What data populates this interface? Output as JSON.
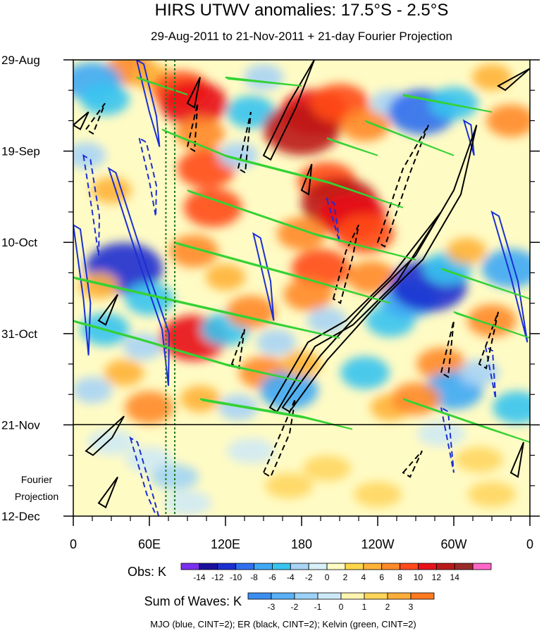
{
  "colors": {
    "mjo": "#1a2fd6",
    "er": "#000000",
    "kelvin": "#34d234",
    "meridian_marker": "#1f7a1f",
    "obs_scale": [
      "#7b2ff0",
      "#1c0f9e",
      "#1c2fd0",
      "#2f6ff0",
      "#3fa8f5",
      "#37c4f0",
      "#a9d4f5",
      "#d8f0f7",
      "#fffbc4",
      "#ffd74a",
      "#ffb238",
      "#ff8a2a",
      "#ff4a1a",
      "#e8111a",
      "#bb1a1a",
      "#9c2a2a",
      "#ff66c8"
    ],
    "wave_scale": [
      "#3b8ef0",
      "#5aaff5",
      "#9cd2f7",
      "#cde9f7",
      "#fff4b0",
      "#ffd45a",
      "#ffae3a",
      "#ff7a1f"
    ]
  },
  "chart_data": {
    "type": "heatmap",
    "title": "HIRS UTWV anomalies: 17.5°S - 2.5°S",
    "subtitle": "29-Aug-2011 to 21-Nov-2011 + 21-day Fourier Projection",
    "y_axis": {
      "dates": [
        "29-Aug",
        "19-Sep",
        "10-Oct",
        "31-Oct",
        "21-Nov",
        "12-Dec"
      ],
      "day_offsets": [
        0,
        21,
        42,
        63,
        84,
        105
      ],
      "range_days": [
        0,
        105
      ],
      "observation_end_label": "21-Nov",
      "projection_label": "Fourier Projection"
    },
    "x_axis": {
      "ticks": [
        "0",
        "60E",
        "120E",
        "180",
        "120W",
        "60W",
        "0"
      ],
      "longitudes_east": [
        0,
        60,
        120,
        180,
        240,
        300,
        360
      ],
      "range": [
        0,
        360
      ]
    },
    "marker_longitudes_east": [
      73,
      80
    ],
    "obs_colorbar": {
      "label": "Obs: K",
      "levels": [
        -14,
        -12,
        -10,
        -8,
        -6,
        -4,
        -2,
        0,
        2,
        4,
        6,
        8,
        10,
        12,
        14
      ],
      "level_labels": [
        "-14",
        "-12",
        "-10",
        "-8",
        "-6",
        "-4",
        "-2",
        "0",
        "2",
        "4",
        "6",
        "8",
        "10",
        "12",
        "14"
      ]
    },
    "waves_colorbar": {
      "label": "Sum of Waves: K",
      "levels": [
        -3,
        -2,
        -1,
        0,
        1,
        2,
        3
      ],
      "level_labels": [
        "-3",
        "-2",
        "-1",
        "0",
        "1",
        "2",
        "3"
      ]
    },
    "legend_caption": "MJO (blue, CINT=2); ER (black, CINT=2); Kelvin (green, CINT=2)",
    "anomaly_patches_K": [
      {
        "lon": 45,
        "day": 2,
        "value": 6
      },
      {
        "lon": 62,
        "day": 4,
        "value": 4
      },
      {
        "lon": 85,
        "day": 7,
        "value": 8
      },
      {
        "lon": 95,
        "day": 10,
        "value": 10
      },
      {
        "lon": 100,
        "day": 17,
        "value": 6
      },
      {
        "lon": 105,
        "day": 25,
        "value": 8
      },
      {
        "lon": 15,
        "day": 5,
        "value": -8
      },
      {
        "lon": 25,
        "day": 9,
        "value": -6
      },
      {
        "lon": 10,
        "day": 22,
        "value": -4
      },
      {
        "lon": 30,
        "day": 30,
        "value": 4
      },
      {
        "lon": 150,
        "day": 4,
        "value": -4
      },
      {
        "lon": 140,
        "day": 12,
        "value": -6
      },
      {
        "lon": 130,
        "day": 22,
        "value": -4
      },
      {
        "lon": 190,
        "day": 12,
        "value": 10
      },
      {
        "lon": 180,
        "day": 16,
        "value": 12
      },
      {
        "lon": 210,
        "day": 10,
        "value": 8
      },
      {
        "lon": 230,
        "day": 15,
        "value": 6
      },
      {
        "lon": 250,
        "day": 10,
        "value": -4
      },
      {
        "lon": 275,
        "day": 12,
        "value": -10
      },
      {
        "lon": 300,
        "day": 10,
        "value": -6
      },
      {
        "lon": 330,
        "day": 4,
        "value": 4
      },
      {
        "lon": 345,
        "day": 14,
        "value": 6
      },
      {
        "lon": 200,
        "day": 28,
        "value": 8
      },
      {
        "lon": 210,
        "day": 33,
        "value": 12
      },
      {
        "lon": 220,
        "day": 36,
        "value": 10
      },
      {
        "lon": 230,
        "day": 40,
        "value": 8
      },
      {
        "lon": 180,
        "day": 40,
        "value": 6
      },
      {
        "lon": 195,
        "day": 48,
        "value": 8
      },
      {
        "lon": 185,
        "day": 54,
        "value": 6
      },
      {
        "lon": 110,
        "day": 34,
        "value": 8
      },
      {
        "lon": 95,
        "day": 44,
        "value": 6
      },
      {
        "lon": 120,
        "day": 50,
        "value": 4
      },
      {
        "lon": 40,
        "day": 48,
        "value": -12
      },
      {
        "lon": 20,
        "day": 52,
        "value": 4
      },
      {
        "lon": 60,
        "day": 55,
        "value": -6
      },
      {
        "lon": 25,
        "day": 62,
        "value": -6
      },
      {
        "lon": 55,
        "day": 66,
        "value": -4
      },
      {
        "lon": 95,
        "day": 64,
        "value": 10
      },
      {
        "lon": 120,
        "day": 62,
        "value": -6
      },
      {
        "lon": 140,
        "day": 58,
        "value": 6
      },
      {
        "lon": 160,
        "day": 65,
        "value": -4
      },
      {
        "lon": 150,
        "day": 72,
        "value": 6
      },
      {
        "lon": 170,
        "day": 76,
        "value": -8
      },
      {
        "lon": 180,
        "day": 70,
        "value": 4
      },
      {
        "lon": 200,
        "day": 60,
        "value": -4
      },
      {
        "lon": 235,
        "day": 50,
        "value": 6
      },
      {
        "lon": 250,
        "day": 60,
        "value": -6
      },
      {
        "lon": 265,
        "day": 55,
        "value": -8
      },
      {
        "lon": 280,
        "day": 52,
        "value": -12
      },
      {
        "lon": 295,
        "day": 48,
        "value": -6
      },
      {
        "lon": 310,
        "day": 44,
        "value": 4
      },
      {
        "lon": 345,
        "day": 48,
        "value": -8
      },
      {
        "lon": 330,
        "day": 60,
        "value": 6
      },
      {
        "lon": 290,
        "day": 70,
        "value": 6
      },
      {
        "lon": 300,
        "day": 76,
        "value": -8
      },
      {
        "lon": 320,
        "day": 72,
        "value": -4
      },
      {
        "lon": 350,
        "day": 80,
        "value": -6
      },
      {
        "lon": 230,
        "day": 72,
        "value": -6
      },
      {
        "lon": 250,
        "day": 80,
        "value": 4
      },
      {
        "lon": 270,
        "day": 78,
        "value": 6
      },
      {
        "lon": 130,
        "day": 80,
        "value": -4
      },
      {
        "lon": 100,
        "day": 78,
        "value": 4
      },
      {
        "lon": 60,
        "day": 80,
        "value": 6
      },
      {
        "lon": 15,
        "day": 76,
        "value": -4
      },
      {
        "lon": 40,
        "day": 72,
        "value": 4
      }
    ],
    "projection_patches_sum_of_waves_K": [
      {
        "lon": 30,
        "day": 88,
        "value": -1
      },
      {
        "lon": 60,
        "day": 92,
        "value": -1
      },
      {
        "lon": 80,
        "day": 96,
        "value": -2
      },
      {
        "lon": 90,
        "day": 102,
        "value": -1
      },
      {
        "lon": 140,
        "day": 90,
        "value": -1
      },
      {
        "lon": 170,
        "day": 98,
        "value": 1
      },
      {
        "lon": 200,
        "day": 94,
        "value": 1
      },
      {
        "lon": 240,
        "day": 100,
        "value": 1
      },
      {
        "lon": 290,
        "day": 86,
        "value": -1
      },
      {
        "lon": 320,
        "day": 92,
        "value": 1
      },
      {
        "lon": 330,
        "day": 100,
        "value": 1
      }
    ],
    "contour_lines": [
      {
        "wave": "MJO",
        "sign": "positive",
        "points": [
          [
            28,
            25
          ],
          [
            50,
            45
          ],
          [
            70,
            62
          ],
          [
            75,
            75
          ]
        ]
      },
      {
        "wave": "MJO",
        "sign": "positive",
        "points": [
          [
            50,
            0
          ],
          [
            60,
            12
          ],
          [
            68,
            20
          ]
        ]
      },
      {
        "wave": "MJO",
        "sign": "positive",
        "points": [
          [
            0,
            38
          ],
          [
            8,
            55
          ],
          [
            12,
            68
          ]
        ]
      },
      {
        "wave": "MJO",
        "sign": "positive",
        "points": [
          [
            330,
            35
          ],
          [
            345,
            50
          ],
          [
            358,
            65
          ]
        ]
      },
      {
        "wave": "MJO",
        "sign": "positive",
        "points": [
          [
            142,
            40
          ],
          [
            150,
            50
          ],
          [
            158,
            60
          ]
        ]
      },
      {
        "wave": "MJO",
        "sign": "positive",
        "points": [
          [
            308,
            14
          ],
          [
            316,
            22
          ]
        ]
      },
      {
        "wave": "MJO",
        "sign": "negative",
        "points": [
          [
            8,
            22
          ],
          [
            15,
            35
          ],
          [
            20,
            45
          ]
        ]
      },
      {
        "wave": "MJO",
        "sign": "negative",
        "points": [
          [
            52,
            18
          ],
          [
            60,
            28
          ],
          [
            65,
            36
          ]
        ]
      },
      {
        "wave": "MJO",
        "sign": "negative",
        "points": [
          [
            200,
            32
          ],
          [
            210,
            42
          ]
        ]
      },
      {
        "wave": "MJO",
        "sign": "negative",
        "points": [
          [
            325,
            66
          ],
          [
            333,
            78
          ]
        ]
      },
      {
        "wave": "MJO",
        "sign": "negative",
        "points": [
          [
            45,
            87
          ],
          [
            58,
            100
          ],
          [
            70,
            108
          ]
        ]
      },
      {
        "wave": "MJO",
        "sign": "negative",
        "points": [
          [
            290,
            80
          ],
          [
            300,
            95
          ]
        ]
      },
      {
        "wave": "ER",
        "sign": "positive",
        "points": [
          [
            150,
            22
          ],
          [
            170,
            10
          ],
          [
            190,
            0
          ]
        ]
      },
      {
        "wave": "ER",
        "sign": "positive",
        "points": [
          [
            90,
            10
          ],
          [
            100,
            4
          ]
        ]
      },
      {
        "wave": "ER",
        "sign": "positive",
        "points": [
          [
            0,
            15
          ],
          [
            12,
            12
          ]
        ]
      },
      {
        "wave": "ER",
        "sign": "positive",
        "points": [
          [
            165,
            80
          ],
          [
            195,
            68
          ],
          [
            235,
            55
          ],
          [
            270,
            45
          ],
          [
            300,
            30
          ],
          [
            318,
            15
          ]
        ]
      },
      {
        "wave": "ER",
        "sign": "positive",
        "points": [
          [
            155,
            80
          ],
          [
            185,
            65
          ],
          [
            215,
            60
          ],
          [
            250,
            50
          ],
          [
            290,
            35
          ]
        ]
      },
      {
        "wave": "ER",
        "sign": "positive",
        "points": [
          [
            10,
            90
          ],
          [
            25,
            86
          ],
          [
            40,
            82
          ]
        ]
      },
      {
        "wave": "ER",
        "sign": "positive",
        "points": [
          [
            20,
            102
          ],
          [
            35,
            96
          ]
        ]
      },
      {
        "wave": "ER",
        "sign": "positive",
        "points": [
          [
            335,
            6
          ],
          [
            360,
            2
          ]
        ]
      },
      {
        "wave": "ER",
        "sign": "positive",
        "points": [
          [
            20,
            60
          ],
          [
            35,
            54
          ]
        ]
      },
      {
        "wave": "ER",
        "sign": "positive",
        "points": [
          [
            180,
            30
          ],
          [
            188,
            24
          ]
        ]
      },
      {
        "wave": "ER",
        "sign": "positive",
        "points": [
          [
            345,
            95
          ],
          [
            355,
            88
          ]
        ]
      },
      {
        "wave": "ER",
        "sign": "negative",
        "points": [
          [
            10,
            16
          ],
          [
            25,
            10
          ]
        ]
      },
      {
        "wave": "ER",
        "sign": "negative",
        "points": [
          [
            130,
            25
          ],
          [
            140,
            12
          ]
        ]
      },
      {
        "wave": "ER",
        "sign": "negative",
        "points": [
          [
            205,
            55
          ],
          [
            215,
            44
          ],
          [
            225,
            38
          ]
        ]
      },
      {
        "wave": "ER",
        "sign": "negative",
        "points": [
          [
            240,
            42
          ],
          [
            260,
            25
          ],
          [
            280,
            15
          ]
        ]
      },
      {
        "wave": "ER",
        "sign": "negative",
        "points": [
          [
            90,
            20
          ],
          [
            98,
            10
          ]
        ]
      },
      {
        "wave": "ER",
        "sign": "negative",
        "points": [
          [
            125,
            70
          ],
          [
            135,
            62
          ]
        ]
      },
      {
        "wave": "ER",
        "sign": "negative",
        "points": [
          [
            150,
            95
          ],
          [
            165,
            85
          ],
          [
            175,
            78
          ]
        ]
      },
      {
        "wave": "ER",
        "sign": "negative",
        "points": [
          [
            260,
            95
          ],
          [
            275,
            90
          ]
        ]
      },
      {
        "wave": "ER",
        "sign": "negative",
        "points": [
          [
            320,
            70
          ],
          [
            335,
            58
          ]
        ]
      },
      {
        "wave": "ER",
        "sign": "negative",
        "points": [
          [
            290,
            72
          ],
          [
            300,
            60
          ]
        ]
      },
      {
        "wave": "Kelvin",
        "sign": "positive",
        "points": [
          [
            50,
            4
          ],
          [
            90,
            8
          ]
        ]
      },
      {
        "wave": "Kelvin",
        "sign": "positive",
        "points": [
          [
            70,
            16
          ],
          [
            120,
            22
          ],
          [
            200,
            28
          ],
          [
            260,
            34
          ]
        ]
      },
      {
        "wave": "Kelvin",
        "sign": "positive",
        "points": [
          [
            90,
            30
          ],
          [
            190,
            40
          ],
          [
            270,
            46
          ]
        ]
      },
      {
        "wave": "Kelvin",
        "sign": "positive",
        "points": [
          [
            80,
            42
          ],
          [
            180,
            50
          ],
          [
            250,
            56
          ]
        ]
      },
      {
        "wave": "Kelvin",
        "sign": "positive",
        "points": [
          [
            0,
            50
          ],
          [
            60,
            54
          ],
          [
            150,
            60
          ],
          [
            210,
            64
          ]
        ]
      },
      {
        "wave": "Kelvin",
        "sign": "positive",
        "points": [
          [
            0,
            60
          ],
          [
            50,
            64
          ],
          [
            120,
            70
          ],
          [
            180,
            74
          ]
        ]
      },
      {
        "wave": "Kelvin",
        "sign": "positive",
        "points": [
          [
            100,
            78
          ],
          [
            180,
            82
          ],
          [
            220,
            85
          ]
        ]
      },
      {
        "wave": "Kelvin",
        "sign": "positive",
        "points": [
          [
            260,
            78
          ],
          [
            320,
            84
          ],
          [
            360,
            88
          ]
        ]
      },
      {
        "wave": "Kelvin",
        "sign": "positive",
        "points": [
          [
            290,
            48
          ],
          [
            360,
            55
          ]
        ]
      },
      {
        "wave": "Kelvin",
        "sign": "positive",
        "points": [
          [
            300,
            58
          ],
          [
            360,
            64
          ]
        ]
      },
      {
        "wave": "Kelvin",
        "sign": "positive",
        "points": [
          [
            230,
            14
          ],
          [
            300,
            22
          ]
        ]
      },
      {
        "wave": "Kelvin",
        "sign": "positive",
        "points": [
          [
            260,
            8
          ],
          [
            330,
            12
          ]
        ]
      },
      {
        "wave": "Kelvin",
        "sign": "positive",
        "points": [
          [
            200,
            18
          ],
          [
            240,
            22
          ]
        ]
      },
      {
        "wave": "Kelvin",
        "sign": "positive",
        "points": [
          [
            120,
            4
          ],
          [
            180,
            6
          ]
        ]
      }
    ]
  }
}
